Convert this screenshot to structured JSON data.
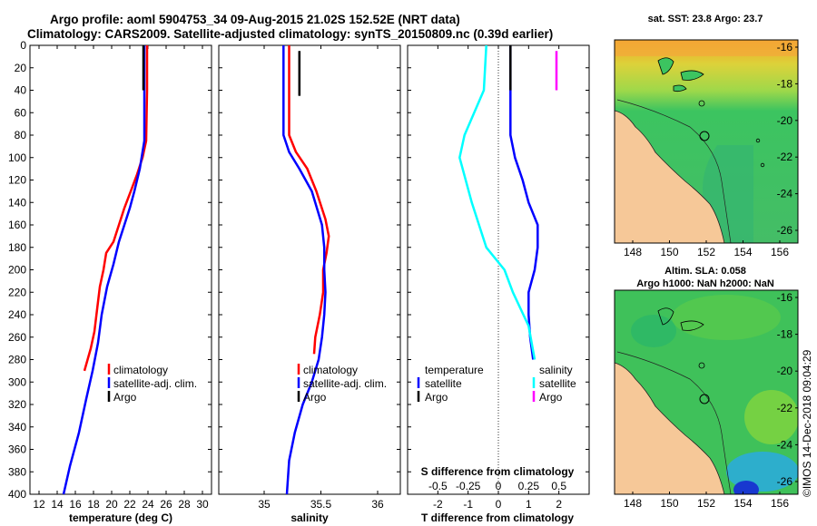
{
  "figure": {
    "title_line1": "Argo profile: aoml 5904753_34 09-Aug-2015 21.02S 152.52E (NRT data)",
    "title_line2": "Climatology: CARS2009. Satellite-adjusted climatology: synTS_20150809.nc (0.39d earlier)",
    "credit": "©IMOS 14-Dec-2018 09:04:29"
  },
  "colors": {
    "climatology": "#ff0000",
    "satellite": "#0000ff",
    "argo": "#000000",
    "sal_satellite": "#00ffff",
    "sal_argo": "#ff00ff",
    "land": "#f6c898"
  },
  "chart_data": [
    {
      "id": "temperature",
      "type": "line",
      "xlabel": "temperature (deg C)",
      "xlim": [
        11,
        31
      ],
      "xticks": [
        12,
        14,
        16,
        18,
        20,
        22,
        24,
        26,
        28,
        30
      ],
      "ylim": [
        0,
        400
      ],
      "yticks": [
        0,
        20,
        40,
        60,
        80,
        100,
        120,
        140,
        160,
        180,
        200,
        220,
        240,
        260,
        280,
        300,
        320,
        340,
        360,
        380,
        400
      ],
      "legend": [
        "climatology",
        "satellite-adj. clim.",
        "Argo"
      ],
      "series": [
        {
          "name": "climatology",
          "points": [
            [
              23.9,
              0
            ],
            [
              23.9,
              40
            ],
            [
              23.8,
              85
            ],
            [
              23.4,
              100
            ],
            [
              22.8,
              115
            ],
            [
              22.1,
              130
            ],
            [
              21.4,
              145
            ],
            [
              20.8,
              160
            ],
            [
              20.2,
              175
            ],
            [
              19.4,
              185
            ],
            [
              19.1,
              200
            ],
            [
              18.7,
              215
            ],
            [
              18.4,
              235
            ],
            [
              18.1,
              255
            ],
            [
              17.7,
              270
            ],
            [
              17.0,
              290
            ]
          ]
        },
        {
          "name": "satellite-adj. clim.",
          "points": [
            [
              23.6,
              0
            ],
            [
              23.6,
              40
            ],
            [
              23.6,
              85
            ],
            [
              23.1,
              110
            ],
            [
              22.5,
              130
            ],
            [
              22.0,
              145
            ],
            [
              21.4,
              160
            ],
            [
              20.8,
              175
            ],
            [
              20.2,
              195
            ],
            [
              19.5,
              215
            ],
            [
              18.9,
              240
            ],
            [
              18.5,
              265
            ],
            [
              17.9,
              290
            ],
            [
              17.2,
              315
            ],
            [
              16.4,
              345
            ],
            [
              15.4,
              375
            ],
            [
              14.7,
              400
            ]
          ]
        },
        {
          "name": "Argo",
          "points": [
            [
              23.5,
              0
            ],
            [
              23.5,
              40
            ]
          ]
        }
      ]
    },
    {
      "id": "salinity",
      "type": "line",
      "xlabel": "salinity",
      "xlim": [
        34.6,
        36.2
      ],
      "xticks": [
        35,
        35.5,
        36
      ],
      "xtick_labels": [
        "35",
        "35.5",
        "36"
      ],
      "ylim": [
        0,
        400
      ],
      "legend": [
        "climatology",
        "satellite-adj. clim.",
        "Argo"
      ],
      "series": [
        {
          "name": "climatology",
          "points": [
            [
              35.22,
              0
            ],
            [
              35.22,
              40
            ],
            [
              35.22,
              60
            ],
            [
              35.22,
              80
            ],
            [
              35.28,
              95
            ],
            [
              35.38,
              110
            ],
            [
              35.46,
              130
            ],
            [
              35.54,
              155
            ],
            [
              35.57,
              170
            ],
            [
              35.55,
              185
            ],
            [
              35.52,
              200
            ],
            [
              35.52,
              220
            ],
            [
              35.49,
              240
            ],
            [
              35.45,
              260
            ],
            [
              35.44,
              275
            ]
          ]
        },
        {
          "name": "satellite-adj. clim.",
          "points": [
            [
              35.17,
              0
            ],
            [
              35.17,
              40
            ],
            [
              35.17,
              60
            ],
            [
              35.17,
              80
            ],
            [
              35.22,
              95
            ],
            [
              35.31,
              110
            ],
            [
              35.42,
              130
            ],
            [
              35.51,
              160
            ],
            [
              35.53,
              180
            ],
            [
              35.53,
              200
            ],
            [
              35.54,
              220
            ],
            [
              35.53,
              240
            ],
            [
              35.51,
              260
            ],
            [
              35.48,
              280
            ],
            [
              35.42,
              300
            ],
            [
              35.34,
              320
            ],
            [
              35.27,
              345
            ],
            [
              35.22,
              370
            ],
            [
              35.2,
              400
            ]
          ]
        },
        {
          "name": "Argo",
          "points": [
            [
              35.31,
              5
            ],
            [
              35.31,
              45
            ]
          ]
        }
      ]
    },
    {
      "id": "difference",
      "type": "line",
      "xlabel": "T difference from climatology",
      "xlabel_top": "S difference from climatology",
      "xlim": [
        -3,
        3
      ],
      "xticks": [
        -2,
        -1,
        0,
        1,
        2
      ],
      "xtick_labels": [
        "-2",
        "-1",
        "0",
        "1",
        "2"
      ],
      "top_xticks": [
        -0.5,
        -0.25,
        0,
        0.25,
        0.5
      ],
      "top_xtick_labels": [
        "-0.5",
        "-0.25",
        "0",
        "0.25",
        "0.5"
      ],
      "ylim": [
        0,
        400
      ],
      "legend_temperature": {
        "heading": "temperature",
        "items": [
          "satellite",
          "Argo"
        ]
      },
      "legend_salinity": {
        "heading": "salinity",
        "items": [
          "satellite",
          "Argo"
        ]
      },
      "series": [
        {
          "name": "T satellite",
          "points": [
            [
              0.4,
              0
            ],
            [
              0.4,
              40
            ],
            [
              0.4,
              80
            ],
            [
              0.55,
              100
            ],
            [
              0.8,
              120
            ],
            [
              1.0,
              140
            ],
            [
              1.3,
              160
            ],
            [
              1.3,
              180
            ],
            [
              1.2,
              200
            ],
            [
              1.0,
              220
            ],
            [
              1.0,
              240
            ],
            [
              1.05,
              260
            ],
            [
              1.15,
              280
            ]
          ]
        },
        {
          "name": "T Argo",
          "points": [
            [
              0.4,
              0
            ],
            [
              0.4,
              40
            ]
          ]
        },
        {
          "name": "S satellite",
          "points": [
            [
              -0.1,
              0
            ],
            [
              -0.12,
              40
            ],
            [
              -0.28,
              80
            ],
            [
              -0.32,
              100
            ],
            [
              -0.22,
              140
            ],
            [
              -0.1,
              180
            ],
            [
              0.05,
              200
            ],
            [
              0.12,
              220
            ],
            [
              0.25,
              250
            ],
            [
              0.3,
              280
            ]
          ]
        },
        {
          "name": "S Argo",
          "points": [
            [
              0.48,
              5
            ],
            [
              0.48,
              40
            ]
          ]
        }
      ]
    }
  ],
  "maps": [
    {
      "id": "sst-map",
      "title": "sat. SST: 23.8 Argo: 23.7",
      "xticks": [
        "148",
        "150",
        "152",
        "154",
        "156"
      ],
      "yticks": [
        "-16",
        "-18",
        "-20",
        "-22",
        "-24",
        "-26"
      ]
    },
    {
      "id": "sla-map",
      "title_line1": "Altim. SLA: 0.058",
      "title_line2": "Argo h1000: NaN h2000: NaN",
      "xticks": [
        "148",
        "150",
        "152",
        "154",
        "156"
      ],
      "yticks": [
        "-16",
        "-18",
        "-20",
        "-22",
        "-24",
        "-26"
      ]
    }
  ]
}
